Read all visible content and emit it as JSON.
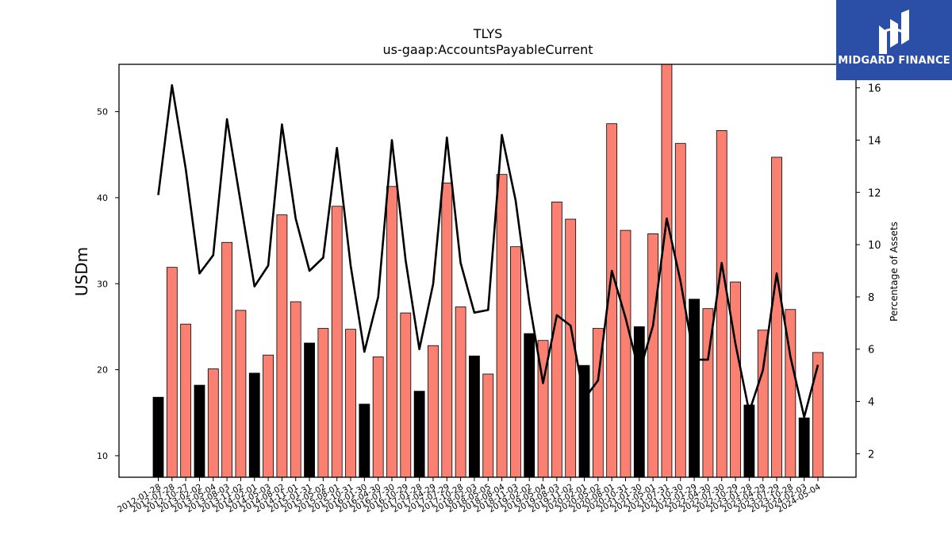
{
  "chart_data": {
    "type": "bar",
    "title": "TLYS",
    "subtitle": "us-gaap:AccountsPayableCurrent",
    "ylabel": "USDm",
    "y2label": "Percentage of Assets",
    "ylim": [
      7.5,
      55.5
    ],
    "y2lim": [
      1.1,
      16.9
    ],
    "yticks": [
      10,
      20,
      30,
      40,
      50
    ],
    "y2ticks": [
      2,
      4,
      6,
      8,
      10,
      12,
      14,
      16
    ],
    "bar_colors": {
      "highlight": "#000000",
      "default": "#fa8072"
    },
    "line_color": "#000000",
    "categories": [
      "2012-01-28",
      "2012-07-28",
      "2012-10-27",
      "2013-02-02",
      "2013-05-04",
      "2013-08-03",
      "2013-11-02",
      "2014-02-01",
      "2014-05-03",
      "2014-08-02",
      "2014-11-01",
      "2015-01-31",
      "2015-05-02",
      "2015-08-01",
      "2015-10-31",
      "2016-01-30",
      "2016-04-30",
      "2016-07-30",
      "2016-10-29",
      "2017-01-28",
      "2017-04-29",
      "2017-07-29",
      "2017-10-28",
      "2018-02-03",
      "2018-05-05",
      "2018-08-04",
      "2018-11-03",
      "2019-02-02",
      "2019-05-04",
      "2019-08-03",
      "2019-11-02",
      "2020-02-01",
      "2020-05-02",
      "2020-08-01",
      "2020-10-31",
      "2021-01-30",
      "2021-05-01",
      "2021-07-31",
      "2021-10-30",
      "2022-01-29",
      "2022-04-30",
      "2022-07-30",
      "2022-10-29",
      "2023-01-28",
      "2023-04-29",
      "2023-07-29",
      "2023-10-28",
      "2024-02-03",
      "2024-05-04"
    ],
    "values": [
      16.8,
      31.9,
      25.3,
      18.2,
      20.1,
      34.8,
      26.9,
      19.6,
      21.7,
      38.0,
      27.9,
      23.1,
      24.8,
      39.0,
      24.7,
      16.0,
      21.5,
      41.3,
      26.6,
      17.5,
      22.8,
      41.7,
      27.3,
      21.6,
      19.5,
      42.7,
      34.3,
      24.2,
      23.4,
      39.5,
      37.5,
      20.5,
      24.8,
      48.6,
      36.2,
      25.0,
      35.8,
      55.6,
      46.3,
      28.2,
      27.1,
      47.8,
      30.2,
      15.9,
      24.6,
      44.7,
      27.0,
      14.4,
      22.0
    ],
    "highlight": [
      true,
      false,
      false,
      true,
      false,
      false,
      false,
      true,
      false,
      false,
      false,
      true,
      false,
      false,
      false,
      true,
      false,
      false,
      false,
      true,
      false,
      false,
      false,
      true,
      false,
      false,
      false,
      true,
      false,
      false,
      false,
      true,
      false,
      false,
      false,
      true,
      false,
      false,
      false,
      true,
      false,
      false,
      false,
      true,
      false,
      false,
      false,
      true,
      false
    ],
    "series": [
      {
        "name": "Percentage of Assets",
        "axis": "right",
        "values": [
          11.9,
          16.1,
          12.9,
          8.9,
          9.6,
          14.8,
          11.6,
          8.4,
          9.2,
          14.6,
          11.0,
          9.0,
          9.5,
          13.7,
          9.2,
          5.9,
          8.0,
          14.0,
          9.4,
          6.0,
          8.5,
          14.1,
          9.3,
          7.4,
          7.5,
          14.2,
          11.7,
          7.8,
          4.7,
          7.3,
          6.9,
          4.1,
          4.8,
          9.0,
          7.2,
          5.1,
          6.9,
          11.0,
          8.6,
          5.6,
          5.6,
          9.3,
          6.2,
          3.6,
          5.2,
          8.9,
          5.7,
          3.4,
          5.4
        ]
      }
    ]
  },
  "logo": {
    "text": "MIDGARD FINANCE",
    "color": "#2b4ea6"
  }
}
